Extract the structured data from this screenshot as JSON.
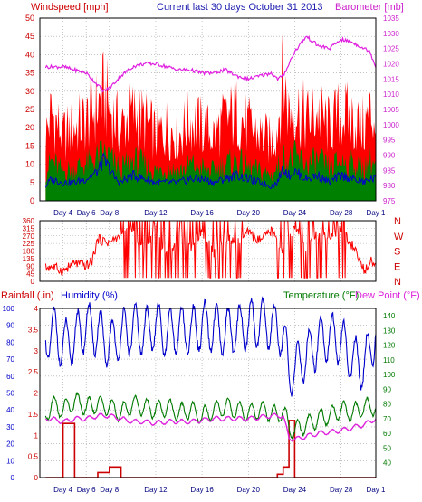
{
  "header": {
    "left": "Windspeed [mph]",
    "center": "Current last 30 days October 31 2013",
    "right": "Barometer [mb]"
  },
  "colors": {
    "gust": "#ff0000",
    "wind": "#008000",
    "wind_avg": "#0000cc",
    "barometer": "#e020e0",
    "direction": "#ff0000",
    "rain": "#cc0000",
    "humidity": "#0000cc",
    "temperature": "#007a00",
    "dewpoint": "#dd22dd",
    "grid": "#a0a0a0",
    "frame": "#000000"
  },
  "x_axis": {
    "range_days": [
      2,
      31
    ],
    "ticks": [
      {
        "day": 4,
        "label": "Day 4"
      },
      {
        "day": 6,
        "label": "Day 6"
      },
      {
        "day": 8,
        "label": "Day 8"
      },
      {
        "day": 12,
        "label": "Day 12"
      },
      {
        "day": 16,
        "label": "Day 16"
      },
      {
        "day": 20,
        "label": "Day 20"
      },
      {
        "day": 24,
        "label": "Day 24"
      },
      {
        "day": 28,
        "label": "Day 28"
      },
      {
        "day": 31,
        "label": "Day 1"
      }
    ]
  },
  "chart_data": [
    {
      "type": "area",
      "panel": "wind",
      "ylim_left": [
        0,
        50
      ],
      "left_ticks": [
        0,
        5,
        10,
        15,
        20,
        25,
        30,
        35,
        40,
        45,
        50
      ],
      "ylim_right": [
        975,
        1035
      ],
      "right_ticks": [
        975,
        980,
        985,
        990,
        995,
        1000,
        1005,
        1010,
        1015,
        1020,
        1025,
        1030,
        1035
      ],
      "x": [
        2.5,
        3,
        4,
        5,
        6,
        7,
        7.5,
        8,
        8.5,
        9,
        10,
        11,
        12,
        13,
        14,
        15,
        16,
        17,
        18,
        19,
        20,
        21,
        22,
        22.5,
        23,
        23.5,
        24,
        25,
        26,
        27,
        28,
        29,
        30,
        30.5,
        31
      ],
      "series": [
        {
          "key": "gust",
          "axis": "left",
          "values": [
            18,
            24,
            18,
            20,
            22,
            26,
            29,
            26,
            22,
            20,
            24,
            22,
            18,
            20,
            18,
            22,
            20,
            18,
            22,
            24,
            20,
            18,
            16,
            20,
            34,
            24,
            26,
            22,
            24,
            20,
            24,
            22,
            20,
            24,
            22
          ]
        },
        {
          "key": "wind",
          "axis": "left",
          "values": [
            8,
            11,
            8,
            9,
            10,
            12,
            13,
            12,
            10,
            9,
            11,
            10,
            8,
            9,
            8,
            10,
            9,
            8,
            10,
            11,
            9,
            8,
            7,
            9,
            12,
            11,
            12,
            10,
            11,
            9,
            11,
            10,
            9,
            11,
            10
          ]
        },
        {
          "key": "wind_avg",
          "axis": "left",
          "values": [
            4,
            6,
            5,
            5,
            6,
            8,
            11,
            9,
            6,
            5,
            7,
            6,
            5,
            5,
            5,
            6,
            6,
            5,
            6,
            7,
            6,
            5,
            4,
            5,
            9,
            7,
            8,
            6,
            7,
            5,
            7,
            6,
            5,
            6,
            6
          ]
        },
        {
          "key": "barometer",
          "axis": "right",
          "values": [
            1019,
            1019,
            1019,
            1018,
            1017,
            1013,
            1011,
            1012,
            1014,
            1016,
            1019,
            1020,
            1020,
            1019,
            1018,
            1018,
            1017,
            1017,
            1018,
            1016,
            1015,
            1016,
            1017,
            1015,
            1016,
            1020,
            1024,
            1029,
            1026,
            1025,
            1028,
            1027,
            1025,
            1024,
            1019
          ]
        }
      ]
    },
    {
      "type": "line",
      "panel": "direction",
      "ylim": [
        0,
        360
      ],
      "ticks": [
        0,
        45,
        90,
        135,
        180,
        225,
        270,
        315,
        360
      ],
      "right_labels": [
        "N",
        "W",
        "S",
        "E",
        "N"
      ],
      "x": [
        2.5,
        3,
        4,
        5,
        6,
        6.5,
        7,
        8,
        9,
        10,
        11,
        12,
        13,
        14,
        15,
        16,
        17,
        18,
        19,
        20,
        21,
        22,
        23,
        24,
        25,
        26,
        27,
        28,
        29,
        30,
        30.5,
        31
      ],
      "series": [
        {
          "key": "direction",
          "values": [
            80,
            90,
            60,
            110,
            90,
            120,
            250,
            230,
            270,
            300,
            180,
            320,
            140,
            280,
            200,
            300,
            170,
            260,
            230,
            290,
            240,
            300,
            180,
            320,
            200,
            280,
            240,
            310,
            210,
            60,
            130,
            100
          ]
        }
      ]
    },
    {
      "type": "line",
      "panel": "rain-humidity-temperature",
      "ylim_rain": [
        0,
        4
      ],
      "rain_ticks": [
        "0",
        "0.5",
        "1",
        "1.5",
        "2",
        "2.5",
        "3",
        "3.5",
        "4"
      ],
      "ylim_humidity": [
        0,
        100
      ],
      "humidity_ticks": [
        0,
        10,
        20,
        30,
        40,
        50,
        60,
        70,
        80,
        90,
        100
      ],
      "ylim_temperature": [
        30,
        145
      ],
      "temperature_ticks": [
        40,
        50,
        60,
        70,
        80,
        90,
        100,
        110,
        120,
        130,
        140
      ],
      "x": [
        2.5,
        3,
        4,
        5,
        6,
        7,
        8,
        9,
        10,
        11,
        12,
        13,
        14,
        15,
        16,
        17,
        18,
        19,
        20,
        21,
        22,
        22.5,
        23,
        23.5,
        24,
        25,
        26,
        27,
        28,
        29,
        30,
        31
      ],
      "series": [
        {
          "key": "rain",
          "axis": "rain",
          "values": [
            0,
            0,
            1.28,
            0,
            0,
            0.12,
            0.25,
            0,
            0,
            0,
            0,
            0,
            0,
            0,
            0,
            0,
            0,
            0,
            0,
            0,
            0,
            0.08,
            0.25,
            1.35,
            0,
            0,
            0,
            0,
            0,
            0,
            0,
            0
          ]
        },
        {
          "key": "humidity",
          "axis": "humidity",
          "values": [
            80,
            88,
            78,
            82,
            90,
            86,
            78,
            84,
            88,
            86,
            90,
            84,
            88,
            86,
            90,
            88,
            86,
            88,
            90,
            92,
            90,
            88,
            86,
            60,
            65,
            72,
            80,
            84,
            80,
            70,
            66,
            86
          ]
        },
        {
          "key": "temperature",
          "axis": "temperature",
          "values": [
            72,
            80,
            76,
            82,
            78,
            80,
            78,
            74,
            80,
            78,
            76,
            78,
            74,
            76,
            72,
            76,
            78,
            76,
            74,
            76,
            74,
            72,
            76,
            64,
            62,
            66,
            70,
            72,
            76,
            74,
            78,
            78
          ]
        },
        {
          "key": "dewpoint",
          "axis": "temperature",
          "values": [
            70,
            70,
            68,
            70,
            70,
            72,
            72,
            70,
            68,
            68,
            67,
            68,
            68,
            68,
            69,
            70,
            70,
            70,
            70,
            71,
            72,
            72,
            72,
            57,
            56,
            58,
            60,
            61,
            62,
            64,
            66,
            70
          ]
        }
      ]
    }
  ],
  "bottom_panel": {
    "label_rain": "Rainfall (.in)",
    "label_humidity": "Humidity (%)",
    "label_temperature": "Temperature (°F)",
    "label_dewpoint": "Dew Point (°F)"
  }
}
